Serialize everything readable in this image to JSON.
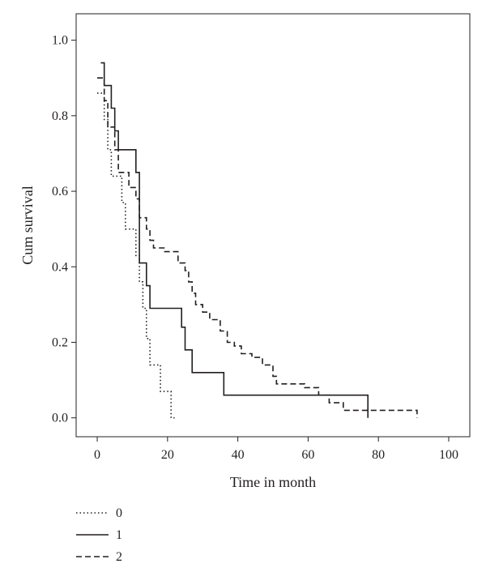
{
  "chart_data": {
    "type": "line",
    "step": true,
    "xlabel": "Time in month",
    "ylabel": "Cum survival",
    "xlim": [
      -6,
      106
    ],
    "ylim": [
      -0.05,
      1.07
    ],
    "xticks": [
      0,
      20,
      40,
      60,
      80,
      100
    ],
    "xtick_labels": [
      "0",
      "20",
      "40",
      "60",
      "80",
      "100"
    ],
    "yticks": [
      0.0,
      0.2,
      0.4,
      0.6,
      0.8,
      1.0
    ],
    "ytick_labels": [
      "0.0",
      "0.2",
      "0.4",
      "0.6",
      "0.8",
      "1.0"
    ],
    "grid": false,
    "legend_position": "bottom-left",
    "series": [
      {
        "name": "0",
        "style": "dotted",
        "color": "#231f20",
        "x": [
          0,
          2,
          3,
          4,
          7,
          8,
          11,
          12,
          13,
          14,
          15,
          16,
          18,
          19,
          21,
          22
        ],
        "y": [
          0.86,
          0.79,
          0.71,
          0.64,
          0.57,
          0.5,
          0.43,
          0.36,
          0.29,
          0.21,
          0.14,
          0.14,
          0.07,
          0.07,
          0.0,
          0.0
        ]
      },
      {
        "name": "1",
        "style": "solid",
        "color": "#231f20",
        "x": [
          1,
          2,
          4,
          5,
          6,
          10,
          11,
          12,
          14,
          15,
          24,
          25,
          27,
          36,
          77
        ],
        "y": [
          0.94,
          0.88,
          0.82,
          0.76,
          0.71,
          0.71,
          0.65,
          0.41,
          0.35,
          0.29,
          0.24,
          0.18,
          0.12,
          0.06,
          0.0
        ]
      },
      {
        "name": "2",
        "style": "dashed",
        "color": "#231f20",
        "x": [
          0,
          2,
          3,
          5,
          6,
          9,
          11,
          12,
          14,
          15,
          16,
          19,
          23,
          25,
          26,
          27,
          28,
          30,
          32,
          35,
          37,
          39,
          41,
          44,
          47,
          50,
          51,
          56,
          59,
          63,
          66,
          70,
          90,
          91
        ],
        "y": [
          0.9,
          0.84,
          0.77,
          0.71,
          0.65,
          0.61,
          0.58,
          0.53,
          0.5,
          0.47,
          0.45,
          0.44,
          0.41,
          0.39,
          0.36,
          0.33,
          0.3,
          0.28,
          0.26,
          0.23,
          0.2,
          0.19,
          0.17,
          0.16,
          0.14,
          0.11,
          0.09,
          0.09,
          0.08,
          0.06,
          0.04,
          0.02,
          0.02,
          0.0
        ]
      }
    ]
  }
}
